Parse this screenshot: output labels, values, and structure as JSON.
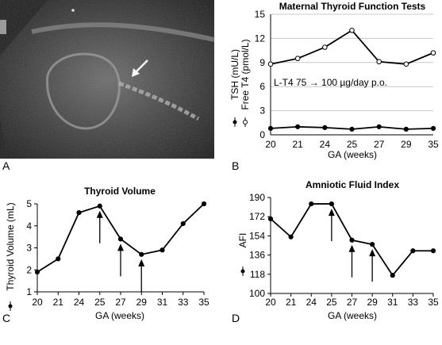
{
  "panels": {
    "a": {
      "letter": "A"
    },
    "b": {
      "letter": "B"
    },
    "c": {
      "letter": "C"
    },
    "d": {
      "letter": "D"
    }
  },
  "colors": {
    "line": "#000000",
    "grid": "#c8c8c8",
    "ultrasound_bg": "#1a1a1a"
  },
  "chart_data": [
    {
      "id": "tft",
      "type": "line",
      "title": "Maternal Thyroid Function Tests",
      "xlabel": "GA (weeks)",
      "ylabel_lines": [
        "TSH (mU/L)",
        "Free T4 (pmol/L)"
      ],
      "categories": [
        "20",
        "21",
        "24",
        "25",
        "27",
        "29",
        "35"
      ],
      "ylim": [
        0,
        15
      ],
      "yticks": [
        0,
        3,
        6,
        9,
        12,
        15
      ],
      "grid": true,
      "series": [
        {
          "name": "TSH (mU/L)",
          "marker": "filled",
          "values": [
            0.8,
            1.0,
            0.9,
            0.7,
            1.0,
            0.7,
            0.8
          ]
        },
        {
          "name": "Free T4 (pmol/L)",
          "marker": "open",
          "values": [
            8.8,
            9.5,
            10.9,
            13.0,
            9.1,
            8.8,
            10.2
          ]
        }
      ],
      "annotation": "L-T4 75 → 100 µg/day p.o."
    },
    {
      "id": "volume",
      "type": "line",
      "title": "Thyroid Volume",
      "xlabel": "GA (weeks)",
      "ylabel": "Thyroid Volume (mL)",
      "categories": [
        "20",
        "21",
        "24",
        "25",
        "27",
        "29",
        "31",
        "33",
        "35"
      ],
      "ylim": [
        1,
        5
      ],
      "yticks": [
        1,
        2,
        3,
        4,
        5
      ],
      "grid": false,
      "series": [
        {
          "marker": "filled",
          "values": [
            1.9,
            2.5,
            4.6,
            4.9,
            3.4,
            2.7,
            2.9,
            4.1,
            5.0
          ]
        }
      ],
      "arrows_at": [
        "25",
        "27",
        "29"
      ]
    },
    {
      "id": "afi",
      "type": "line",
      "title": "Amniotic Fluid Index",
      "xlabel": "GA (weeks)",
      "ylabel": "AFI",
      "categories": [
        "20",
        "21",
        "24",
        "25",
        "27",
        "29",
        "31",
        "33",
        "35"
      ],
      "ylim": [
        100,
        190
      ],
      "yticks": [
        100,
        118,
        136,
        154,
        172,
        190
      ],
      "grid": false,
      "series": [
        {
          "marker": "filled",
          "values": [
            170,
            153,
            184,
            184,
            150,
            146,
            117,
            140,
            140
          ]
        }
      ],
      "arrows_at": [
        "25",
        "27",
        "29"
      ]
    }
  ]
}
